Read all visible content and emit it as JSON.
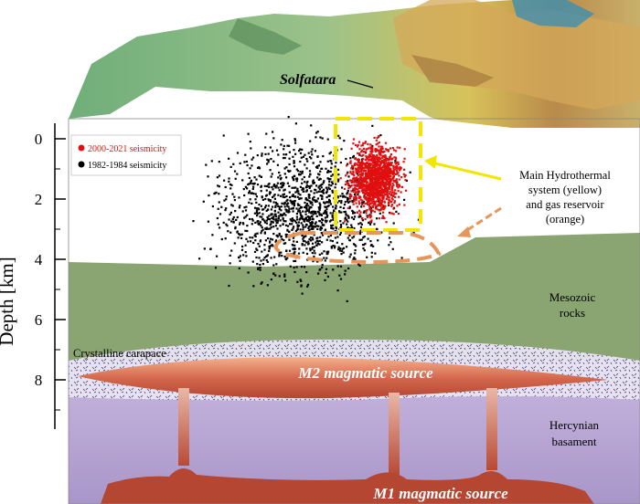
{
  "title_label": "Solfatara",
  "axis": {
    "ylabel": "Depth [km]",
    "ticks": [
      "0",
      "2",
      "4",
      "6",
      "8"
    ]
  },
  "legend": {
    "items": [
      {
        "label": "2000-2021 seismicity",
        "color": "#e01010"
      },
      {
        "label": "1982-1984 seismicity",
        "color": "#000000"
      }
    ]
  },
  "annotations": {
    "hydro_1": "Main Hydrothermal",
    "hydro_2": "system (yellow)",
    "hydro_3": "and gas reservoir",
    "hydro_4": "(orange)",
    "meso_1": "Mesozoic",
    "meso_2": "rocks",
    "carapace": "Crystalline carapace",
    "m2": "M2 magmatic source",
    "herc_1": "Hercynian",
    "herc_2": "basament",
    "m1": "M1 magmatic source"
  },
  "colors": {
    "terrain": "#7fb07a",
    "mesozoic": "#8aa472",
    "basement": "#b9a8d4",
    "magma": "#b84a35",
    "hydro_box": "#f2e600",
    "gas_reservoir": "#e8955a"
  }
}
